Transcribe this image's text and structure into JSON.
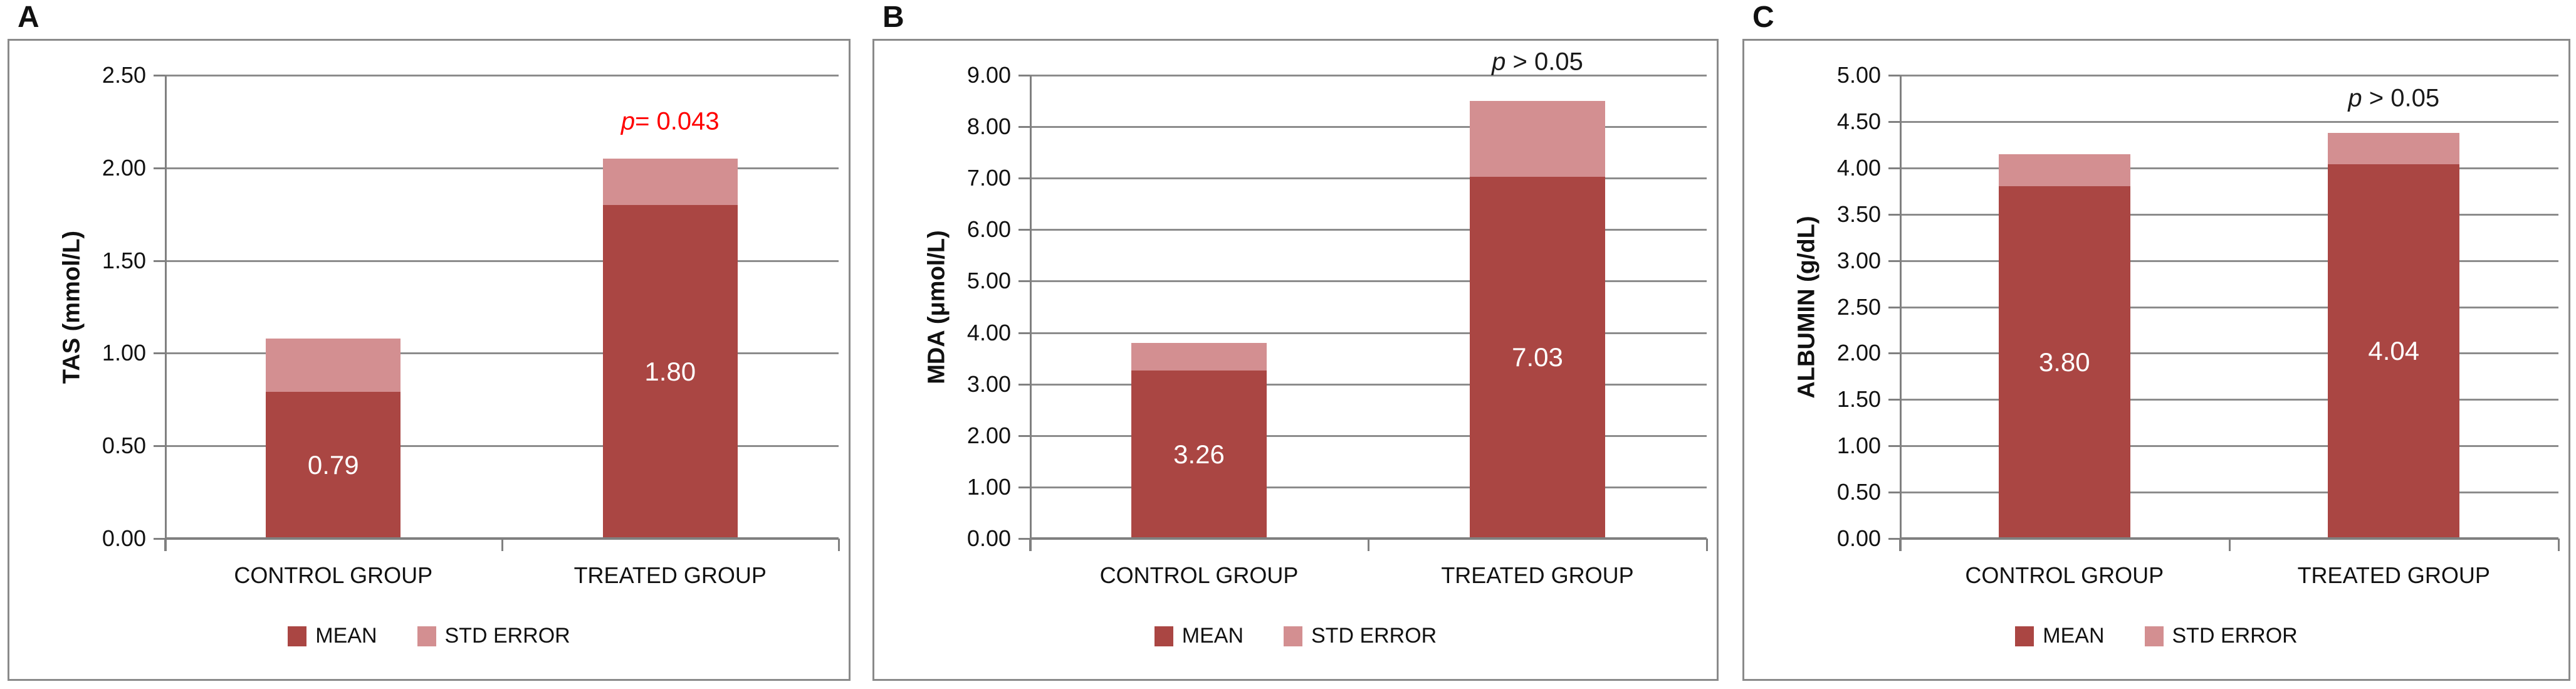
{
  "figure": {
    "background": "#FFFFFF",
    "description": "Three stacked bar chart panels comparing control vs treated groups"
  },
  "colors": {
    "mean": "#AA4643",
    "std_error": "#D38F91",
    "grid": "#8C8C8C",
    "axis": "#808080",
    "panel_border": "#8A8A8A",
    "annotation_red": "#FF0000",
    "annotation_black": "#1A1A1A",
    "text": "#111111",
    "bar_label": "#FFFFFF"
  },
  "legend": {
    "items": [
      {
        "label": "MEAN",
        "color": "#AA4643"
      },
      {
        "label": "STD ERROR",
        "color": "#D38F91"
      }
    ]
  },
  "chart_data": [
    {
      "type": "bar",
      "stacked": true,
      "panel_label": "A",
      "ylabel": "TAS (mmol/L)",
      "ylim": [
        0,
        2.5
      ],
      "ytick_step": 0.5,
      "ytick_labels": [
        "2.50",
        "2.00",
        "1.50",
        "1.00",
        "0.50",
        "0.00"
      ],
      "categories": [
        "CONTROL GROUP",
        "TREATED GROUP"
      ],
      "series": [
        {
          "name": "MEAN",
          "values": [
            0.79,
            1.8
          ]
        },
        {
          "name": "STD ERROR",
          "values": [
            0.29,
            0.25
          ]
        }
      ],
      "bar_value_labels": [
        "0.79",
        "1.80"
      ],
      "grid": true,
      "legend_position": "bottom",
      "annotation": {
        "p_symbol": "p",
        "rest": "= 0.043",
        "color": "#FF0000",
        "over_category": 1,
        "y_value": 2.25
      }
    },
    {
      "type": "bar",
      "stacked": true,
      "panel_label": "B",
      "ylabel": "MDA (μmol/L)",
      "ylim": [
        0,
        9
      ],
      "ytick_step": 1,
      "ytick_labels": [
        "9.00",
        "8.00",
        "7.00",
        "6.00",
        "5.00",
        "4.00",
        "3.00",
        "2.00",
        "1.00",
        "0.00"
      ],
      "categories": [
        "CONTROL GROUP",
        "TREATED GROUP"
      ],
      "series": [
        {
          "name": "MEAN",
          "values": [
            3.26,
            7.03
          ]
        },
        {
          "name": "STD ERROR",
          "values": [
            0.54,
            1.47
          ]
        }
      ],
      "bar_value_labels": [
        "3.26",
        "7.03"
      ],
      "grid": true,
      "legend_position": "bottom",
      "annotation": {
        "p_symbol": "p",
        "rest": " > 0.05",
        "color": "#1A1A1A",
        "over_category": 1,
        "y_value": 9.25
      }
    },
    {
      "type": "bar",
      "stacked": true,
      "panel_label": "C",
      "ylabel": "ALBUMIN (g/dL)",
      "ylim": [
        0,
        5
      ],
      "ytick_step": 0.5,
      "ytick_labels": [
        "5.00",
        "4.50",
        "4.00",
        "3.50",
        "3.00",
        "2.50",
        "2.00",
        "1.50",
        "1.00",
        "0.50",
        "0.00"
      ],
      "categories": [
        "CONTROL GROUP",
        "TREATED GROUP"
      ],
      "series": [
        {
          "name": "MEAN",
          "values": [
            3.8,
            4.04
          ]
        },
        {
          "name": "STD ERROR",
          "values": [
            0.35,
            0.34
          ]
        }
      ],
      "bar_value_labels": [
        "3.80",
        "4.04"
      ],
      "grid": true,
      "legend_position": "bottom",
      "annotation": {
        "p_symbol": "p",
        "rest": " > 0.05",
        "color": "#1A1A1A",
        "over_category": 1,
        "y_value": 4.75
      }
    }
  ]
}
